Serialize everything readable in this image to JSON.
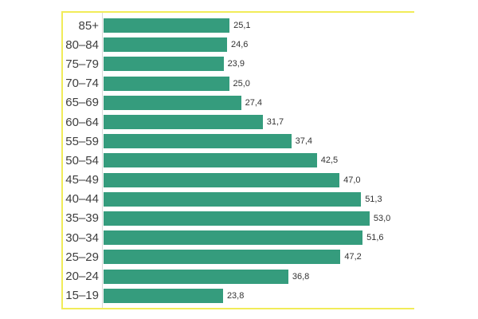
{
  "chart_data": {
    "type": "bar",
    "orientation": "horizontal",
    "title": "",
    "xlabel": "",
    "ylabel": "",
    "categories": [
      "85+",
      "80–84",
      "75–79",
      "70–74",
      "65–69",
      "60–64",
      "55–59",
      "50–54",
      "45–49",
      "40–44",
      "35–39",
      "30–34",
      "25–29",
      "20–24",
      "15–19"
    ],
    "values": [
      25.1,
      24.6,
      23.9,
      25.0,
      27.4,
      31.7,
      37.4,
      42.5,
      47.0,
      51.3,
      53.0,
      51.6,
      47.2,
      36.8,
      23.8
    ],
    "value_labels": [
      "25,1",
      "24,6",
      "23,9",
      "25,0",
      "27,4",
      "31,7",
      "37,4",
      "42,5",
      "47,0",
      "51,3",
      "53,0",
      "51,6",
      "47,2",
      "36,8",
      "23,8"
    ],
    "decimal_separator": ",",
    "xlim": [
      0,
      62
    ],
    "grid": false,
    "legend": null,
    "value_labels_shown": true
  },
  "colors": {
    "bar": "#359c7d",
    "frame_border": "#f1ec59",
    "axis_line": "#d9d9d9",
    "category_text": "#3e3e3e",
    "value_text": "#333333",
    "background": "#ffffff"
  }
}
